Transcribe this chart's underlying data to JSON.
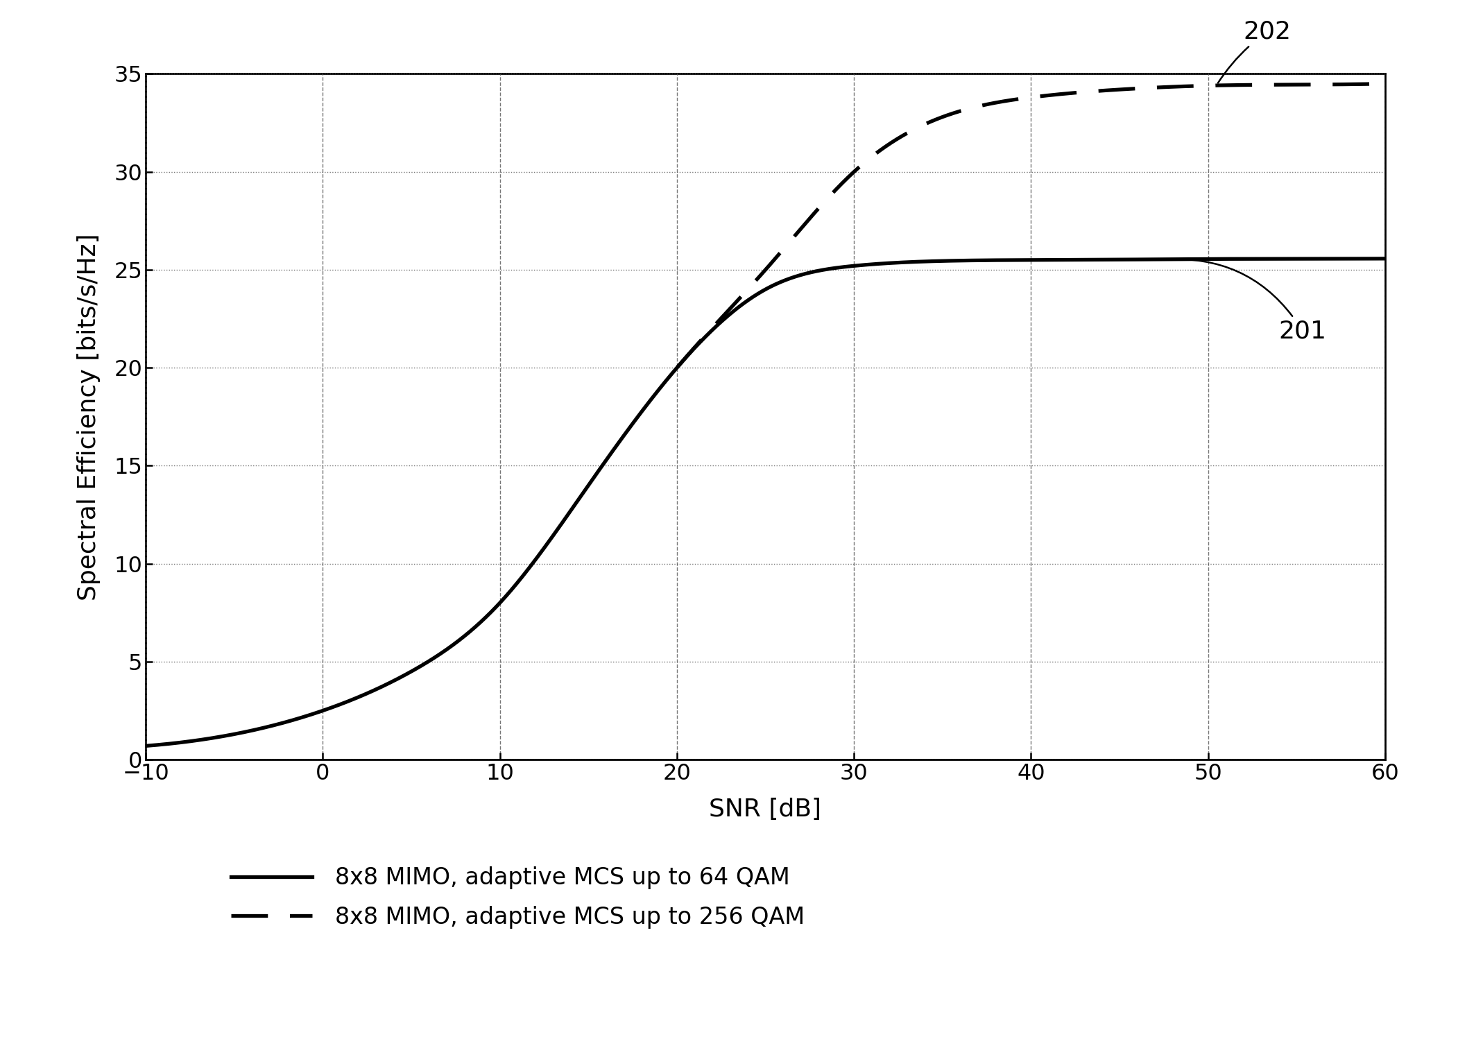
{
  "xlabel": "SNR [dB]",
  "ylabel": "Spectral Efficiency [bits/s/Hz]",
  "xlim": [
    -10,
    60
  ],
  "ylim": [
    0,
    35
  ],
  "xticks": [
    -10,
    0,
    10,
    20,
    30,
    40,
    50,
    60
  ],
  "yticks": [
    0,
    5,
    10,
    15,
    20,
    25,
    30,
    35
  ],
  "line_color": "#000000",
  "background_color": "#ffffff",
  "legend_label_64": "8x8 MIMO, adaptive MCS up to 64 QAM",
  "legend_label_256": "8x8 MIMO, adaptive MCS up to 256 QAM",
  "annotation_201": "201",
  "annotation_202": "202",
  "cap_64": 25.6,
  "cap_256": 34.5,
  "snr_start_dashed": 20.0
}
